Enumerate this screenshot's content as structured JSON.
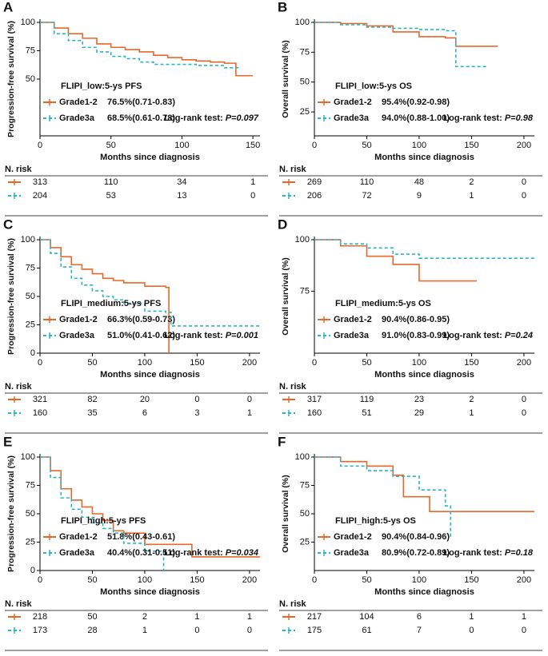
{
  "chart_data": [
    {
      "type": "line",
      "step": true,
      "panel": "A",
      "ylabel": "Progression-free survival (%)",
      "xlabel": "Months since diagnosis",
      "annotation": "FLIPI_low:5-ys PFS",
      "logrank_label": "Log-rank test:",
      "p_value": "P=0.097",
      "risk_title": "N. risk",
      "xlim": [
        0,
        155
      ],
      "xticks": [
        0,
        50,
        100,
        150
      ],
      "ylim": [
        0,
        100
      ],
      "yticks": [
        50,
        75,
        100
      ],
      "series": [
        {
          "name": "Grade1-2",
          "stat": "76.5%(0.71-0.83)",
          "color": "#e8672a",
          "dashed": false,
          "x": [
            0,
            10,
            20,
            30,
            40,
            50,
            60,
            70,
            80,
            90,
            100,
            110,
            120,
            130,
            138,
            150
          ],
          "values": [
            100,
            95,
            90,
            86,
            81,
            78,
            76,
            74,
            71,
            69,
            67,
            66,
            65,
            64,
            53,
            53
          ],
          "risk": [
            313,
            110,
            34,
            1
          ]
        },
        {
          "name": "Grade3a",
          "stat": "68.5%(0.61-0.78)",
          "color": "#2bb5c0",
          "dashed": true,
          "x": [
            0,
            10,
            20,
            30,
            40,
            50,
            60,
            70,
            80,
            90,
            100,
            110,
            120,
            130,
            140
          ],
          "values": [
            100,
            90,
            84,
            78,
            74,
            70,
            68,
            65,
            63,
            63,
            63,
            62,
            62,
            60,
            60
          ],
          "risk": [
            204,
            53,
            13,
            0
          ]
        }
      ]
    },
    {
      "type": "line",
      "step": true,
      "panel": "B",
      "ylabel": "Overall survival (%)",
      "xlabel": "Months since diagnosis",
      "annotation": "FLIPI_low:5-ys OS",
      "logrank_label": "Log-rank test:",
      "p_value": "P=0.98",
      "risk_title": "N. risk",
      "xlim": [
        0,
        210
      ],
      "xticks": [
        0,
        50,
        100,
        150,
        200
      ],
      "ylim": [
        5,
        100
      ],
      "yticks": [
        25,
        50,
        75,
        100
      ],
      "series": [
        {
          "name": "Grade1-2",
          "stat": "95.4%(0.92-0.98)",
          "color": "#e8672a",
          "dashed": false,
          "x": [
            0,
            25,
            50,
            75,
            100,
            125,
            135,
            175
          ],
          "values": [
            100,
            99,
            97,
            92,
            88,
            87,
            80,
            80
          ],
          "risk": [
            269,
            110,
            48,
            2,
            0
          ]
        },
        {
          "name": "Grade3a",
          "stat": "94.0%(0.88-1.00)",
          "color": "#2bb5c0",
          "dashed": true,
          "x": [
            0,
            25,
            50,
            75,
            100,
            125,
            135,
            165
          ],
          "values": [
            100,
            98,
            96,
            95,
            94,
            93,
            63,
            63
          ],
          "risk": [
            206,
            72,
            9,
            1,
            0
          ]
        }
      ]
    },
    {
      "type": "line",
      "step": true,
      "panel": "C",
      "ylabel": "Progression-free survival (%)",
      "xlabel": "Months since diagnosis",
      "annotation": "FLIPI_medium:5-ys PFS",
      "logrank_label": "Log-rank test:",
      "p_value": "P=0.001",
      "risk_title": "N. risk",
      "xlim": [
        0,
        210
      ],
      "xticks": [
        0,
        50,
        100,
        150,
        200
      ],
      "ylim": [
        0,
        100
      ],
      "yticks": [
        0,
        25,
        50,
        75,
        100
      ],
      "series": [
        {
          "name": "Grade1-2",
          "stat": "66.3%(0.59-0.73)",
          "color": "#e8672a",
          "dashed": false,
          "x": [
            0,
            10,
            20,
            30,
            40,
            50,
            60,
            70,
            80,
            100,
            120,
            123
          ],
          "values": [
            100,
            93,
            85,
            78,
            74,
            70,
            66,
            64,
            62,
            59,
            58,
            0
          ],
          "risk": [
            321,
            82,
            20,
            0,
            0
          ]
        },
        {
          "name": "Grade3a",
          "stat": "51.0%(0.41-0.62)",
          "color": "#2bb5c0",
          "dashed": true,
          "x": [
            0,
            10,
            20,
            30,
            40,
            50,
            60,
            70,
            80,
            100,
            120,
            125,
            210
          ],
          "values": [
            100,
            88,
            76,
            66,
            60,
            55,
            50,
            47,
            44,
            37,
            36,
            24,
            24
          ],
          "risk": [
            160,
            35,
            6,
            3,
            1
          ]
        }
      ]
    },
    {
      "type": "line",
      "step": true,
      "panel": "D",
      "ylabel": "Overall survival (%)",
      "xlabel": "Months since diagnosis",
      "annotation": "FLIPI_medium:5-ys OS",
      "logrank_label": "Log-rank test:",
      "p_value": "P=0.24",
      "risk_title": "N. risk",
      "xlim": [
        0,
        210
      ],
      "xticks": [
        0,
        50,
        100,
        150,
        200
      ],
      "ylim": [
        45,
        100
      ],
      "yticks": [
        75,
        100
      ],
      "series": [
        {
          "name": "Grade1-2",
          "stat": "90.4%(0.86-0.95)",
          "color": "#e8672a",
          "dashed": false,
          "x": [
            0,
            25,
            50,
            75,
            100,
            125,
            155
          ],
          "values": [
            100,
            97,
            92,
            88,
            80,
            80,
            80
          ],
          "risk": [
            317,
            119,
            23,
            2,
            0
          ]
        },
        {
          "name": "Grade3a",
          "stat": "91.0%(0.83-0.99)",
          "color": "#2bb5c0",
          "dashed": true,
          "x": [
            0,
            25,
            50,
            75,
            100,
            125,
            210
          ],
          "values": [
            100,
            98,
            96,
            93,
            91,
            91,
            91
          ],
          "risk": [
            160,
            51,
            29,
            1,
            0
          ]
        }
      ]
    },
    {
      "type": "line",
      "step": true,
      "panel": "E",
      "ylabel": "Progression-free survival (%)",
      "xlabel": "Months since diagnosis",
      "annotation": "FLIPI_high:5-ys PFS",
      "logrank_label": "Log-rank test:",
      "p_value": "P=0.034",
      "risk_title": "N. risk",
      "xlim": [
        0,
        210
      ],
      "xticks": [
        0,
        50,
        100,
        150,
        200
      ],
      "ylim": [
        0,
        100
      ],
      "yticks": [
        0,
        25,
        50,
        75,
        100
      ],
      "series": [
        {
          "name": "Grade1-2",
          "stat": "51.8%(0.43-0.61)",
          "color": "#e8672a",
          "dashed": false,
          "x": [
            0,
            10,
            20,
            30,
            40,
            50,
            60,
            70,
            80,
            100,
            145,
            210
          ],
          "values": [
            100,
            88,
            72,
            62,
            56,
            50,
            44,
            35,
            33,
            23,
            12,
            12
          ],
          "risk": [
            218,
            50,
            2,
            1,
            1
          ]
        },
        {
          "name": "Grade3a",
          "stat": "40.4%(0.31-0.51)",
          "color": "#2bb5c0",
          "dashed": true,
          "x": [
            0,
            10,
            20,
            30,
            40,
            50,
            60,
            70,
            80,
            100,
            118
          ],
          "values": [
            100,
            82,
            64,
            54,
            47,
            42,
            37,
            33,
            24,
            17,
            0
          ],
          "risk": [
            173,
            28,
            1,
            0,
            0
          ]
        }
      ]
    },
    {
      "type": "line",
      "step": true,
      "panel": "F",
      "ylabel": "Overall survival (%)",
      "xlabel": "Months since diagnosis",
      "annotation": "FLIPI_high:5-ys OS",
      "logrank_label": "Log-rank test:",
      "p_value": "P=0.18",
      "risk_title": "N. risk",
      "xlim": [
        0,
        210
      ],
      "xticks": [
        0,
        50,
        100,
        150,
        200
      ],
      "ylim": [
        0,
        100
      ],
      "yticks": [
        25,
        50,
        75,
        100
      ],
      "series": [
        {
          "name": "Grade1-2",
          "stat": "90.4%(0.84-0.96)",
          "color": "#e8672a",
          "dashed": false,
          "x": [
            0,
            25,
            50,
            75,
            85,
            110,
            210
          ],
          "values": [
            100,
            96,
            92,
            84,
            65,
            52,
            52
          ],
          "risk": [
            217,
            104,
            6,
            1,
            1
          ]
        },
        {
          "name": "Grade3a",
          "stat": "80.9%(0.72-0.89)",
          "color": "#2bb5c0",
          "dashed": true,
          "x": [
            0,
            25,
            50,
            75,
            100,
            125,
            130
          ],
          "values": [
            100,
            92,
            88,
            83,
            71,
            57,
            29
          ],
          "risk": [
            175,
            61,
            7,
            0,
            0
          ]
        }
      ]
    }
  ]
}
